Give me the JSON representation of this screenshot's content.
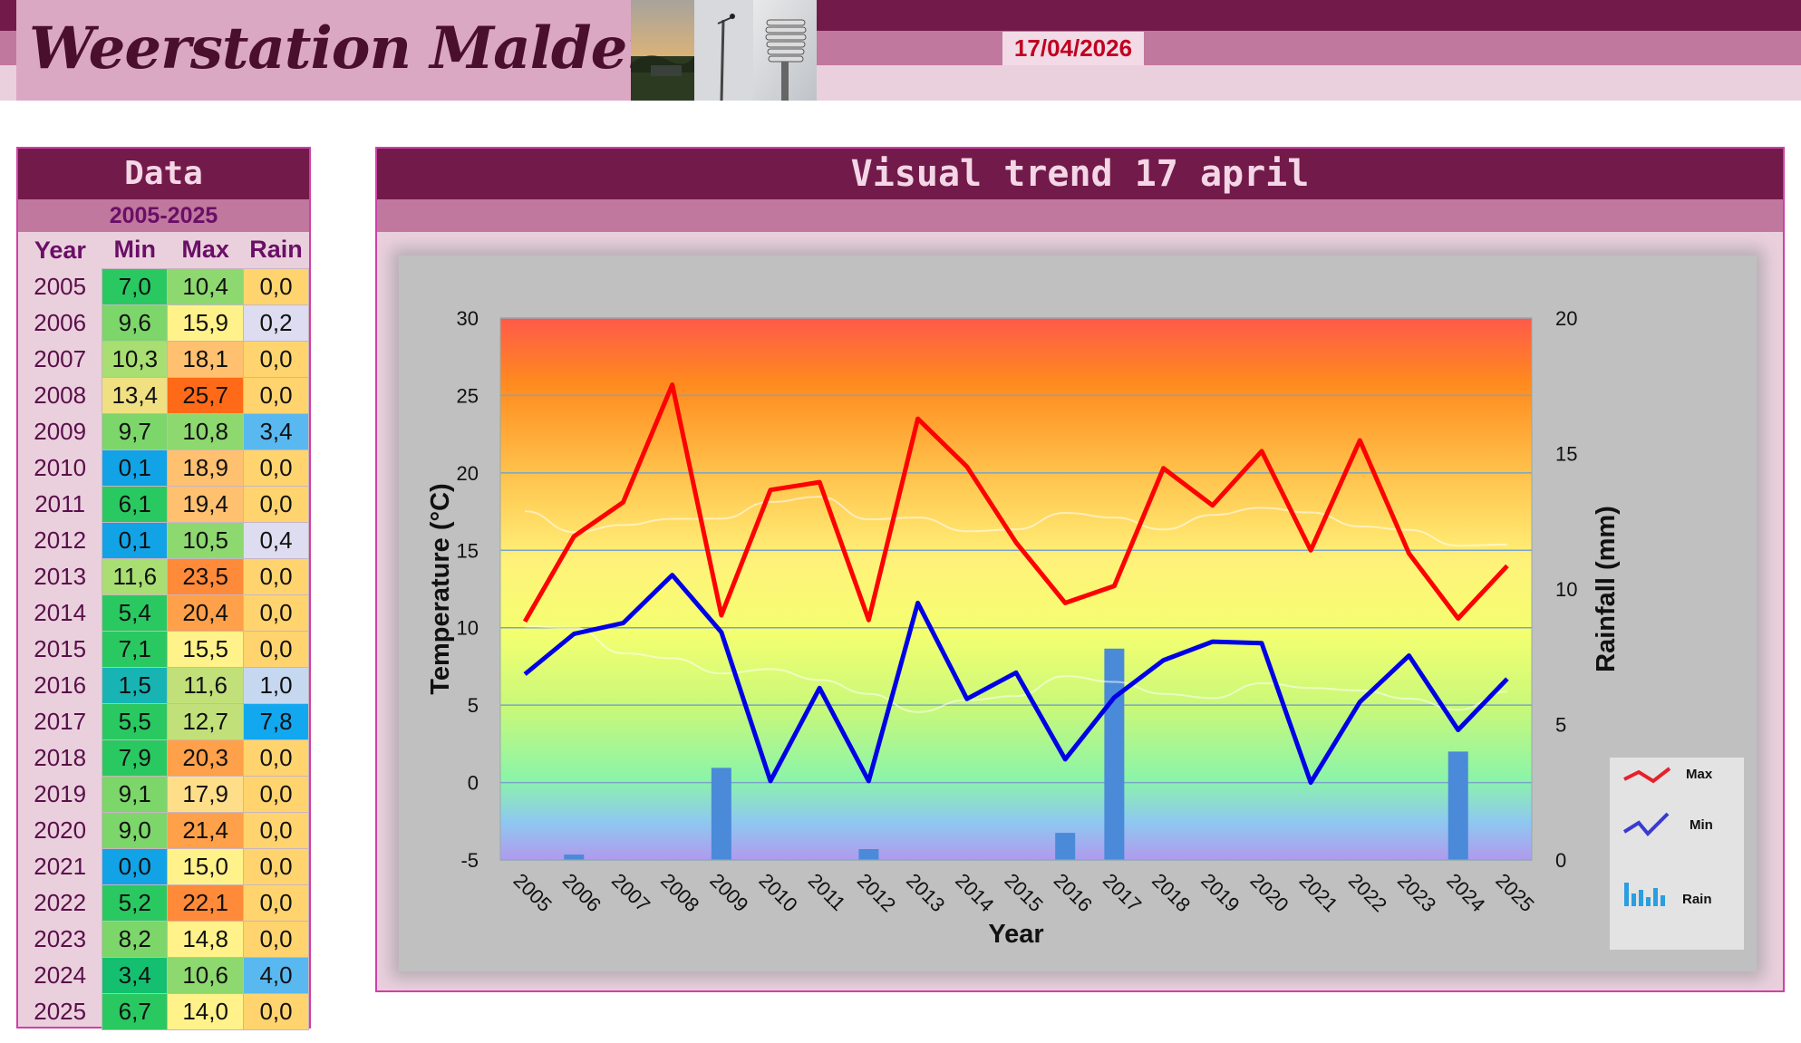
{
  "header": {
    "title": "Weerstation Malderen",
    "date": "17/04/2026"
  },
  "data_panel": {
    "title": "Data",
    "subtitle": "2005-2025",
    "columns": [
      "Year",
      "Min",
      "Max",
      "Rain"
    ]
  },
  "chart_panel": {
    "title": "Visual trend 17 april"
  },
  "colors": {
    "max_line": "#ff0000",
    "min_line": "#0000e6",
    "rain_bars": "#4a8ad8",
    "header_dark": "#721a4a",
    "header_mid": "#c0789e",
    "date_text": "#c00020"
  },
  "chart_data": {
    "type": "line",
    "title": "",
    "xlabel": "Year",
    "ylabel": "Temperature (°C)",
    "y2label": "Rainfall (mm)",
    "ylim": [
      -5,
      30
    ],
    "y2lim": [
      0,
      20
    ],
    "yticks": [
      -5,
      0,
      5,
      10,
      15,
      20,
      25,
      30
    ],
    "y2ticks": [
      0,
      5,
      10,
      15,
      20
    ],
    "grid": true,
    "legend_position": "bottom-right",
    "categories": [
      "2005",
      "2006",
      "2007",
      "2008",
      "2009",
      "2010",
      "2011",
      "2012",
      "2013",
      "2014",
      "2015",
      "2016",
      "2017",
      "2018",
      "2019",
      "2020",
      "2021",
      "2022",
      "2023",
      "2024",
      "2025"
    ],
    "series": [
      {
        "name": "Max",
        "kind": "line",
        "axis": "left",
        "color": "#ff0000",
        "values": [
          10.4,
          15.9,
          18.1,
          25.7,
          10.8,
          18.9,
          19.4,
          10.5,
          23.5,
          20.4,
          15.5,
          11.6,
          12.7,
          20.3,
          17.9,
          21.4,
          15.0,
          22.1,
          14.8,
          10.6,
          14.0
        ]
      },
      {
        "name": "Min",
        "kind": "line",
        "axis": "left",
        "color": "#0000e6",
        "values": [
          7.0,
          9.6,
          10.3,
          13.4,
          9.7,
          0.1,
          6.1,
          0.1,
          11.6,
          5.4,
          7.1,
          1.5,
          5.5,
          7.9,
          9.1,
          9.0,
          0.0,
          5.2,
          8.2,
          3.4,
          6.7
        ]
      },
      {
        "name": "Rain",
        "kind": "bar",
        "axis": "right",
        "color": "#4a8ad8",
        "values": [
          0.0,
          0.2,
          0.0,
          0.0,
          3.4,
          0.0,
          0.0,
          0.4,
          0.0,
          0.0,
          0.0,
          1.0,
          7.8,
          0.0,
          0.0,
          0.0,
          0.0,
          0.0,
          0.0,
          4.0,
          0.0
        ]
      }
    ]
  },
  "table": {
    "rows": [
      {
        "year": "2005",
        "min": "7,0",
        "max": "10,4",
        "rain": "0,0"
      },
      {
        "year": "2006",
        "min": "9,6",
        "max": "15,9",
        "rain": "0,2"
      },
      {
        "year": "2007",
        "min": "10,3",
        "max": "18,1",
        "rain": "0,0"
      },
      {
        "year": "2008",
        "min": "13,4",
        "max": "25,7",
        "rain": "0,0"
      },
      {
        "year": "2009",
        "min": "9,7",
        "max": "10,8",
        "rain": "3,4"
      },
      {
        "year": "2010",
        "min": "0,1",
        "max": "18,9",
        "rain": "0,0"
      },
      {
        "year": "2011",
        "min": "6,1",
        "max": "19,4",
        "rain": "0,0"
      },
      {
        "year": "2012",
        "min": "0,1",
        "max": "10,5",
        "rain": "0,4"
      },
      {
        "year": "2013",
        "min": "11,6",
        "max": "23,5",
        "rain": "0,0"
      },
      {
        "year": "2014",
        "min": "5,4",
        "max": "20,4",
        "rain": "0,0"
      },
      {
        "year": "2015",
        "min": "7,1",
        "max": "15,5",
        "rain": "0,0"
      },
      {
        "year": "2016",
        "min": "1,5",
        "max": "11,6",
        "rain": "1,0"
      },
      {
        "year": "2017",
        "min": "5,5",
        "max": "12,7",
        "rain": "7,8"
      },
      {
        "year": "2018",
        "min": "7,9",
        "max": "20,3",
        "rain": "0,0"
      },
      {
        "year": "2019",
        "min": "9,1",
        "max": "17,9",
        "rain": "0,0"
      },
      {
        "year": "2020",
        "min": "9,0",
        "max": "21,4",
        "rain": "0,0"
      },
      {
        "year": "2021",
        "min": "0,0",
        "max": "15,0",
        "rain": "0,0"
      },
      {
        "year": "2022",
        "min": "5,2",
        "max": "22,1",
        "rain": "0,0"
      },
      {
        "year": "2023",
        "min": "8,2",
        "max": "14,8",
        "rain": "0,0"
      },
      {
        "year": "2024",
        "min": "3,4",
        "max": "10,6",
        "rain": "4,0"
      },
      {
        "year": "2025",
        "min": "6,7",
        "max": "14,0",
        "rain": "0,0"
      }
    ]
  }
}
